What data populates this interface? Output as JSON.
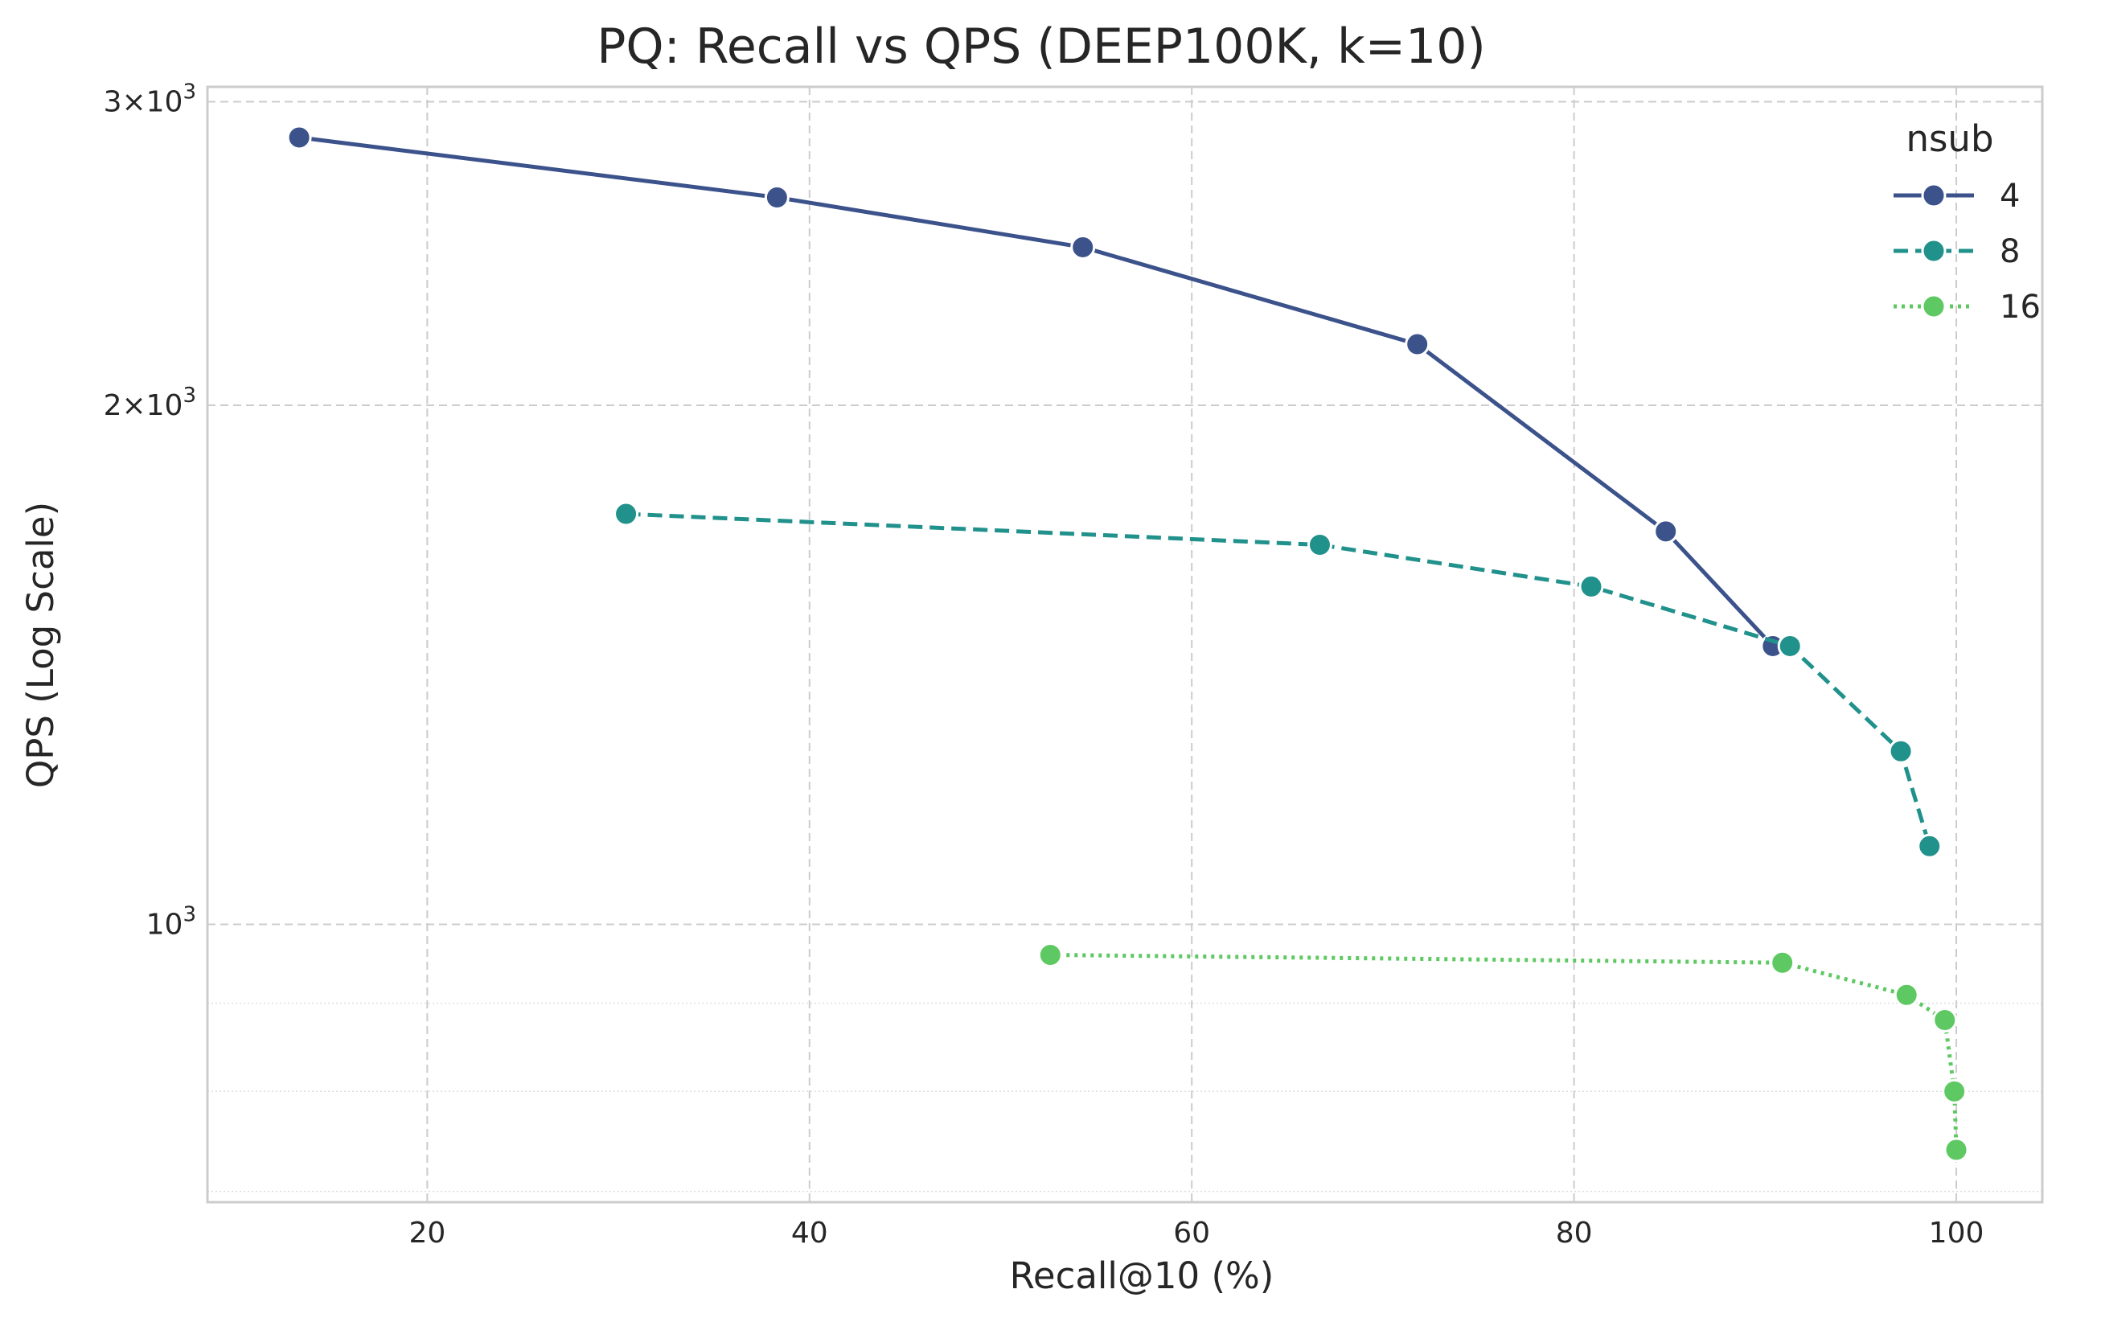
{
  "chart_data": {
    "type": "line",
    "title": "PQ: Recall vs QPS (DEEP100K, k=10)",
    "xlabel": "Recall@10 (%)",
    "ylabel": "QPS (Log Scale)",
    "xlim": [
      8.5,
      104.5
    ],
    "ylim": [
      690,
      3060
    ],
    "yscale": "log",
    "x_ticks": [
      20,
      40,
      60,
      80,
      100
    ],
    "y_major_ticks": [
      {
        "value": 1000,
        "mantissa": "",
        "exponent": "3"
      },
      {
        "value": 2000,
        "mantissa": "2",
        "exponent": "3"
      },
      {
        "value": 3000,
        "mantissa": "3",
        "exponent": "3"
      }
    ],
    "y_minor_gridlines": [
      700,
      800,
      900
    ],
    "grid": true,
    "legend": {
      "title": "nsub",
      "position": "top-right"
    },
    "series": [
      {
        "name": "4",
        "color": "#3b528b",
        "dash": "solid",
        "x": [
          13.3,
          38.3,
          54.3,
          71.8,
          84.8,
          90.4
        ],
        "y": [
          2860,
          2640,
          2470,
          2170,
          1690,
          1450
        ]
      },
      {
        "name": "8",
        "color": "#21918c",
        "dash": "dashed",
        "x": [
          30.4,
          66.7,
          80.9,
          91.3,
          97.1,
          98.6
        ],
        "y": [
          1730,
          1660,
          1570,
          1450,
          1260,
          1110
        ]
      },
      {
        "name": "16",
        "color": "#5ec962",
        "dash": "dotted",
        "x": [
          52.6,
          90.9,
          97.4,
          99.4,
          99.9,
          100.0
        ],
        "y": [
          960,
          950,
          910,
          880,
          800,
          740
        ]
      }
    ]
  }
}
